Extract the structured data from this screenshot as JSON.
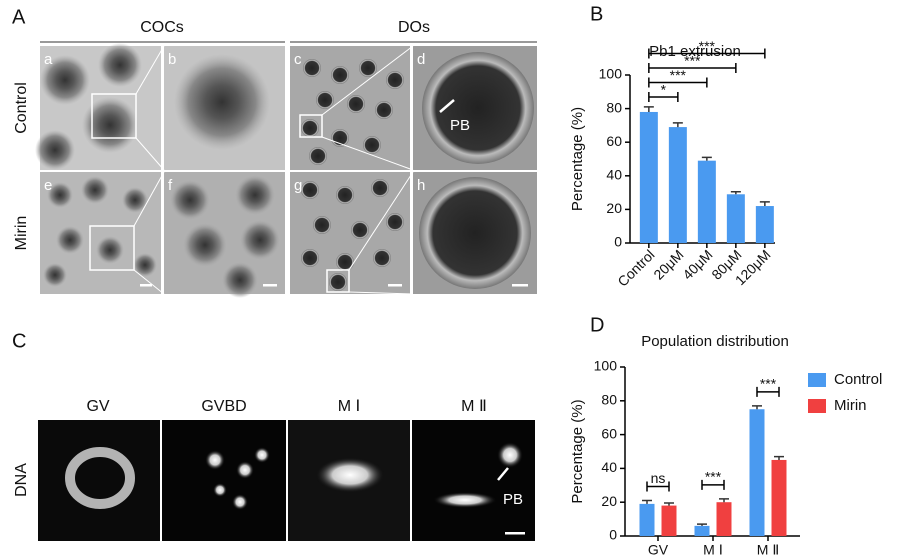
{
  "panels": {
    "a": "A",
    "b": "B",
    "c": "C",
    "d": "D"
  },
  "panel_a": {
    "col_headers": [
      "COCs",
      "DOs"
    ],
    "row_labels": [
      "Control",
      "Mirin"
    ],
    "sub_labels": [
      "a",
      "b",
      "c",
      "d",
      "e",
      "f",
      "g",
      "h"
    ],
    "arrow_label": "PB"
  },
  "panel_c": {
    "stages": [
      "GV",
      "GVBD",
      "M Ⅰ",
      "M Ⅱ"
    ],
    "row_label": "DNA",
    "arrow_label": "PB"
  },
  "chart_data": [
    {
      "type": "bar",
      "title": "Pb1 extrusion",
      "y_label": "Percentage (%)",
      "categories": [
        "Control",
        "20μM",
        "40μM",
        "80μM",
        "120μM"
      ],
      "values": [
        78,
        69,
        49,
        29,
        22
      ],
      "errors": [
        3,
        2.5,
        2,
        1.5,
        2.5
      ],
      "significance": [
        null,
        "*",
        "***",
        "***",
        "***"
      ],
      "color": "#4a9af0",
      "ylim": [
        0,
        100
      ],
      "yticks": [
        0,
        20,
        40,
        60,
        80,
        100
      ]
    },
    {
      "type": "grouped-bar",
      "title": "Population distribution",
      "y_label": "Percentage (%)",
      "categories": [
        "GV",
        "M Ⅰ",
        "M Ⅱ"
      ],
      "series": [
        {
          "name": "Control",
          "color": "#4a9af0",
          "values": [
            19,
            6,
            75
          ],
          "errors": [
            2,
            1,
            2
          ]
        },
        {
          "name": "Mirin",
          "color": "#f04040",
          "values": [
            18,
            20,
            45
          ],
          "errors": [
            1.5,
            2,
            2
          ]
        }
      ],
      "significance": [
        "ns",
        "***",
        "***"
      ],
      "legend": "right",
      "ylim": [
        0,
        100
      ],
      "yticks": [
        0,
        20,
        40,
        60,
        80,
        100
      ]
    }
  ]
}
